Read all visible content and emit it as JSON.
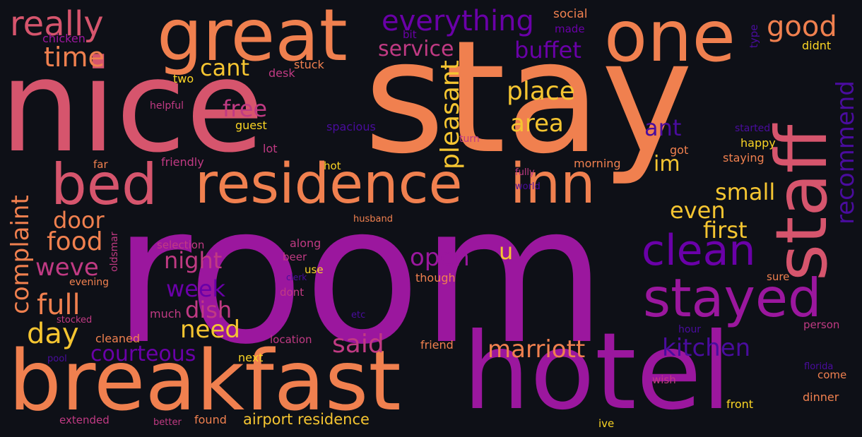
{
  "words": {
    "room": "room",
    "stay": "stay",
    "nice": "nice",
    "hotel": "hotel",
    "breakfast": "breakfast",
    "great": "great",
    "one": "one",
    "residence": "residence",
    "inn": "inn",
    "bed": "bed",
    "staff": "staff",
    "stayed": "stayed",
    "clean": "clean",
    "really": "really",
    "everything": "everything",
    "good": "good",
    "time": "time",
    "service": "service",
    "buffet": "buffet",
    "cant": "cant",
    "place": "place",
    "free": "free",
    "pleasant": "pleasant",
    "area": "area",
    "ant": "ant",
    "recommend": "recommend",
    "im": "im",
    "small": "small",
    "even": "even",
    "first": "first",
    "complaint": "complaint",
    "door": "door",
    "food": "food",
    "weve": "weve",
    "night": "night",
    "open": "open",
    "u": "u",
    "week": "week",
    "full": "full",
    "dish": "dish",
    "day": "day",
    "need": "need",
    "said": "said",
    "marriott": "marriott",
    "kitchen": "kitchen",
    "courteous": "courteous",
    "airport_residence": "airport residence",
    "social": "social",
    "made": "made",
    "bit": "bit",
    "chicken": "chicken",
    "type": "type",
    "didnt": "didnt",
    "two": "two",
    "stuck": "stuck",
    "desk": "desk",
    "helpful": "helpful",
    "guest": "guest",
    "spacious": "spacious",
    "started": "started",
    "turn": "turn",
    "happy": "happy",
    "lot": "lot",
    "got": "got",
    "far": "far",
    "friendly": "friendly",
    "hot": "hot",
    "morning": "morning",
    "staying": "staying",
    "fully": "fully",
    "world": "world",
    "husband": "husband",
    "oldsmar": "oldsmar",
    "selection": "selection",
    "along": "along",
    "beer": "beer",
    "use": "use",
    "clerk": "clerk",
    "evening": "evening",
    "though": "though",
    "sure": "sure",
    "dont": "dont",
    "much": "much",
    "etc": "etc",
    "stocked": "stocked",
    "hour": "hour",
    "person": "person",
    "cleaned": "cleaned",
    "location": "location",
    "friend": "friend",
    "pool": "pool",
    "next": "next",
    "florida": "florida",
    "wish": "wish",
    "come": "come",
    "dinner": "dinner",
    "front": "front",
    "extended": "extended",
    "better": "better",
    "found": "found",
    "ive": "ive"
  }
}
